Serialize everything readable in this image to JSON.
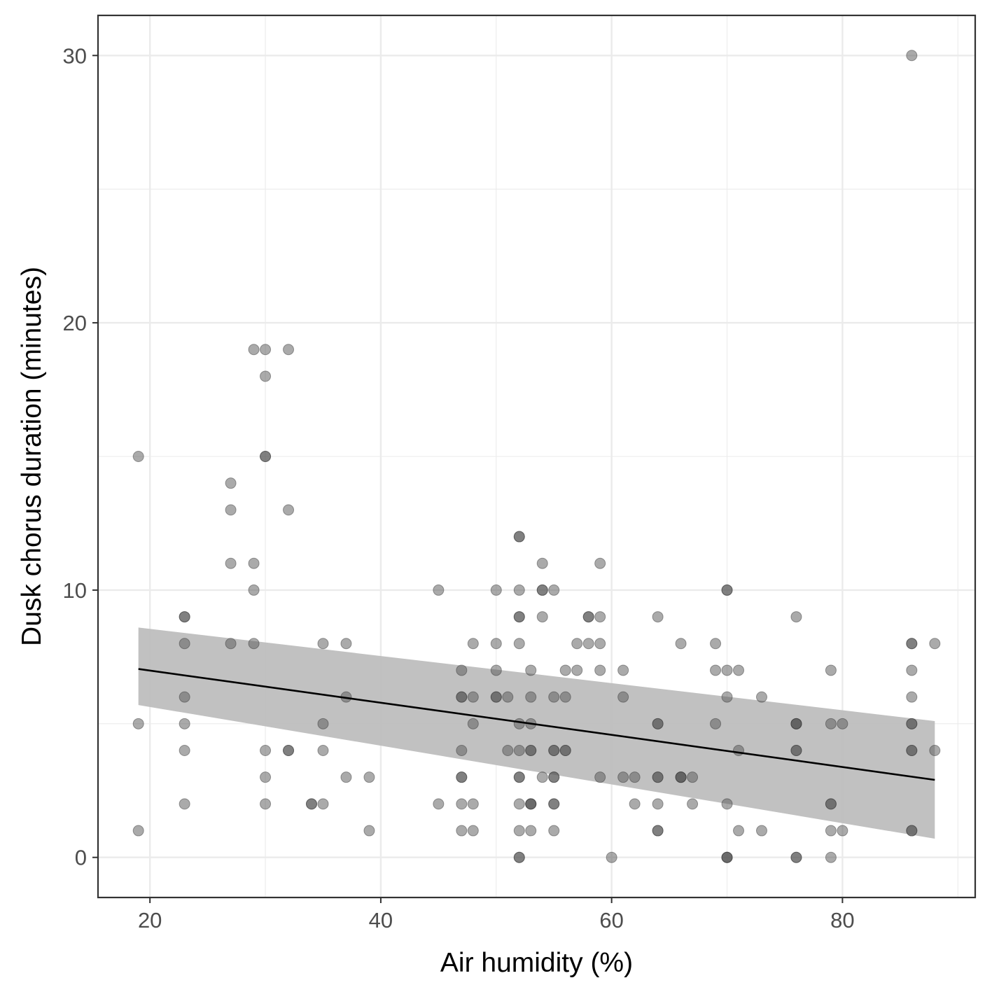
{
  "chart_data": {
    "type": "scatter",
    "xlabel": "Air humidity (%)",
    "ylabel": "Dusk chorus duration (minutes)",
    "xlim": [
      15.5,
      91.5
    ],
    "ylim": [
      -1.5,
      31.5
    ],
    "x_ticks": [
      20,
      40,
      60,
      80
    ],
    "y_ticks": [
      0,
      10,
      20,
      30
    ],
    "x_tick_labels": [
      "20",
      "40",
      "60",
      "80"
    ],
    "y_tick_labels": [
      "0",
      "10",
      "20",
      "30"
    ],
    "grid": true,
    "legend": "none",
    "colors": {
      "points": "#555555",
      "trend_line": "#000000",
      "confidence_band": "#bebebe",
      "panel_border": "#333333",
      "grid": "#ebebeb"
    },
    "points": [
      [
        19,
        15
      ],
      [
        19,
        5
      ],
      [
        19,
        1
      ],
      [
        23,
        9
      ],
      [
        23,
        9
      ],
      [
        23,
        8
      ],
      [
        23,
        6
      ],
      [
        23,
        5
      ],
      [
        23,
        4
      ],
      [
        23,
        2
      ],
      [
        27,
        14
      ],
      [
        27,
        13
      ],
      [
        27,
        11
      ],
      [
        27,
        8
      ],
      [
        29,
        19
      ],
      [
        29,
        11
      ],
      [
        29,
        10
      ],
      [
        29,
        8
      ],
      [
        30,
        19
      ],
      [
        30,
        18
      ],
      [
        30,
        15
      ],
      [
        30,
        15
      ],
      [
        30,
        4
      ],
      [
        30,
        3
      ],
      [
        30,
        2
      ],
      [
        32,
        19
      ],
      [
        32,
        13
      ],
      [
        32,
        4
      ],
      [
        32,
        4
      ],
      [
        34,
        2
      ],
      [
        34,
        2
      ],
      [
        35,
        8
      ],
      [
        35,
        5
      ],
      [
        35,
        4
      ],
      [
        35,
        2
      ],
      [
        37,
        8
      ],
      [
        37,
        6
      ],
      [
        37,
        3
      ],
      [
        39,
        3
      ],
      [
        39,
        1
      ],
      [
        45,
        10
      ],
      [
        45,
        2
      ],
      [
        47,
        7
      ],
      [
        47,
        6
      ],
      [
        47,
        6
      ],
      [
        47,
        4
      ],
      [
        47,
        3
      ],
      [
        47,
        3
      ],
      [
        47,
        2
      ],
      [
        47,
        1
      ],
      [
        48,
        8
      ],
      [
        48,
        6
      ],
      [
        48,
        5
      ],
      [
        48,
        2
      ],
      [
        48,
        1
      ],
      [
        50,
        10
      ],
      [
        50,
        8
      ],
      [
        50,
        7
      ],
      [
        50,
        6
      ],
      [
        50,
        6
      ],
      [
        51,
        6
      ],
      [
        51,
        4
      ],
      [
        52,
        12
      ],
      [
        52,
        12
      ],
      [
        52,
        10
      ],
      [
        52,
        9
      ],
      [
        52,
        9
      ],
      [
        52,
        8
      ],
      [
        52,
        5
      ],
      [
        52,
        4
      ],
      [
        52,
        3
      ],
      [
        52,
        3
      ],
      [
        52,
        2
      ],
      [
        52,
        1
      ],
      [
        52,
        0
      ],
      [
        52,
        0
      ],
      [
        53,
        7
      ],
      [
        53,
        6
      ],
      [
        53,
        5
      ],
      [
        53,
        4
      ],
      [
        53,
        4
      ],
      [
        53,
        2
      ],
      [
        53,
        2
      ],
      [
        53,
        2
      ],
      [
        53,
        1
      ],
      [
        54,
        11
      ],
      [
        54,
        10
      ],
      [
        54,
        10
      ],
      [
        54,
        9
      ],
      [
        54,
        3
      ],
      [
        55,
        10
      ],
      [
        55,
        6
      ],
      [
        55,
        4
      ],
      [
        55,
        4
      ],
      [
        55,
        3
      ],
      [
        55,
        3
      ],
      [
        55,
        2
      ],
      [
        55,
        2
      ],
      [
        55,
        1
      ],
      [
        56,
        7
      ],
      [
        56,
        6
      ],
      [
        56,
        4
      ],
      [
        56,
        4
      ],
      [
        57,
        8
      ],
      [
        57,
        7
      ],
      [
        58,
        9
      ],
      [
        58,
        9
      ],
      [
        58,
        8
      ],
      [
        59,
        11
      ],
      [
        59,
        9
      ],
      [
        59,
        8
      ],
      [
        59,
        7
      ],
      [
        59,
        3
      ],
      [
        60,
        0
      ],
      [
        61,
        7
      ],
      [
        61,
        6
      ],
      [
        61,
        3
      ],
      [
        62,
        3
      ],
      [
        62,
        2
      ],
      [
        64,
        9
      ],
      [
        64,
        5
      ],
      [
        64,
        5
      ],
      [
        64,
        3
      ],
      [
        64,
        3
      ],
      [
        64,
        2
      ],
      [
        64,
        1
      ],
      [
        64,
        1
      ],
      [
        66,
        8
      ],
      [
        66,
        3
      ],
      [
        66,
        3
      ],
      [
        66,
        3
      ],
      [
        67,
        3
      ],
      [
        67,
        2
      ],
      [
        69,
        8
      ],
      [
        69,
        7
      ],
      [
        69,
        5
      ],
      [
        70,
        10
      ],
      [
        70,
        10
      ],
      [
        70,
        7
      ],
      [
        70,
        6
      ],
      [
        70,
        2
      ],
      [
        70,
        0
      ],
      [
        70,
        0
      ],
      [
        70,
        0
      ],
      [
        71,
        7
      ],
      [
        71,
        4
      ],
      [
        71,
        1
      ],
      [
        73,
        6
      ],
      [
        73,
        1
      ],
      [
        76,
        9
      ],
      [
        76,
        5
      ],
      [
        76,
        5
      ],
      [
        76,
        5
      ],
      [
        76,
        4
      ],
      [
        76,
        4
      ],
      [
        76,
        0
      ],
      [
        76,
        0
      ],
      [
        79,
        7
      ],
      [
        79,
        5
      ],
      [
        79,
        2
      ],
      [
        79,
        2
      ],
      [
        79,
        1
      ],
      [
        79,
        0
      ],
      [
        80,
        5
      ],
      [
        80,
        1
      ],
      [
        86,
        30
      ],
      [
        86,
        8
      ],
      [
        86,
        8
      ],
      [
        86,
        7
      ],
      [
        86,
        6
      ],
      [
        86,
        5
      ],
      [
        86,
        5
      ],
      [
        86,
        4
      ],
      [
        86,
        4
      ],
      [
        86,
        1
      ],
      [
        86,
        1
      ],
      [
        88,
        8
      ],
      [
        88,
        4
      ]
    ],
    "trend": {
      "x": [
        19,
        88
      ],
      "y": [
        7.05,
        2.9
      ],
      "ci_lower": [
        5.7,
        0.7
      ],
      "ci_upper": [
        8.6,
        5.1
      ]
    }
  }
}
